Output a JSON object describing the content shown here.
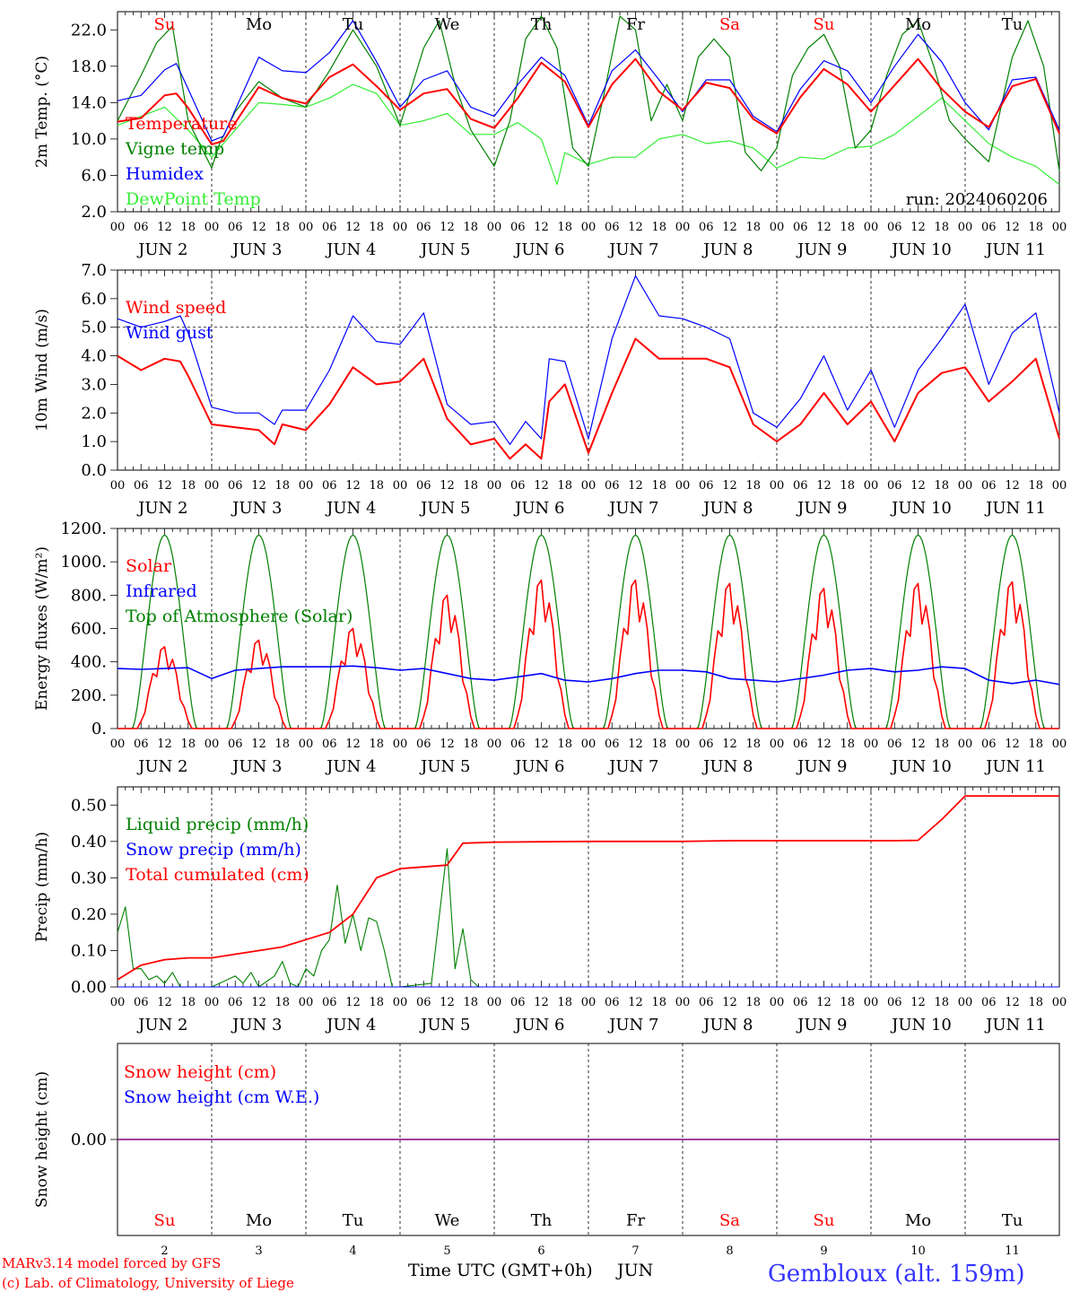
{
  "days": [
    {
      "abbr": "Su",
      "date": "2",
      "weekend": true
    },
    {
      "abbr": "Mo",
      "date": "3",
      "weekend": false
    },
    {
      "abbr": "Tu",
      "date": "4",
      "weekend": false
    },
    {
      "abbr": "We",
      "date": "5",
      "weekend": false
    },
    {
      "abbr": "Th",
      "date": "6",
      "weekend": false
    },
    {
      "abbr": "Fr",
      "date": "7",
      "weekend": false
    },
    {
      "abbr": "Sa",
      "date": "8",
      "weekend": true
    },
    {
      "abbr": "Su",
      "date": "9",
      "weekend": true
    },
    {
      "abbr": "Mo",
      "date": "10",
      "weekend": false
    },
    {
      "abbr": "Tu",
      "date": "11",
      "weekend": false
    }
  ],
  "month": "JUN",
  "hour_labels": [
    "00",
    "06",
    "12",
    "18"
  ],
  "colors": {
    "red": "#ff0000",
    "green": "#008000",
    "blue": "#0000ff",
    "lightgreen": "#33ee33",
    "weekday": "#000000",
    "weekend": "#ff0000",
    "snowline": "#800080"
  },
  "footer": {
    "model_line": "MARv3.14 model forced by GFS",
    "copyright_line": "(c) Lab. of Climatology, University of Liege",
    "x_title": "Time UTC (GMT+0h)",
    "month_label": "JUN",
    "site": "Gembloux (alt. 159m)"
  },
  "chart_data": [
    {
      "type": "line",
      "ylabel": "2m Temp. (°C)",
      "ylim": [
        2.0,
        24.0
      ],
      "yticks": [
        2.0,
        6.0,
        10.0,
        14.0,
        18.0,
        22.0
      ],
      "ytick_labels": [
        "2.0",
        "6.0",
        "10.0",
        "14.0",
        "18.0",
        "22.0"
      ],
      "annotation": "run: 2024060206",
      "x_unit": "hours since JUN 2 00 UTC",
      "series": [
        {
          "name": "Temperature",
          "color": "red",
          "x": [
            0,
            6,
            12,
            15,
            18,
            24,
            27,
            36,
            42,
            48,
            54,
            60,
            66,
            72,
            78,
            84,
            90,
            96,
            102,
            108,
            114,
            120,
            126,
            132,
            138,
            144,
            150,
            156,
            162,
            168,
            174,
            180,
            186,
            192,
            198,
            204,
            210,
            216,
            222,
            228,
            234,
            240
          ],
          "y": [
            11.9,
            12.3,
            14.8,
            15.0,
            13.4,
            9.4,
            9.8,
            15.7,
            14.5,
            13.9,
            16.8,
            18.2,
            15.8,
            13.2,
            15.0,
            15.5,
            12.2,
            11.2,
            14.5,
            18.4,
            16.3,
            11.3,
            16.0,
            18.8,
            15.2,
            13.2,
            16.2,
            15.6,
            12.2,
            10.6,
            14.6,
            17.7,
            16.0,
            13.0,
            15.9,
            18.8,
            15.5,
            13.0,
            11.3,
            15.8,
            16.6,
            10.6
          ]
        },
        {
          "name": "Vigne temp",
          "color": "green",
          "x": [
            0,
            6,
            10,
            14,
            18,
            24,
            26,
            30,
            36,
            42,
            48,
            54,
            60,
            66,
            72,
            78,
            82,
            86,
            90,
            96,
            100,
            104,
            108,
            112,
            116,
            120,
            124,
            128,
            132,
            136,
            140,
            144,
            148,
            152,
            156,
            160,
            164,
            168,
            172,
            176,
            180,
            184,
            188,
            192,
            196,
            200,
            204,
            208,
            212,
            216,
            222,
            228,
            232,
            236,
            240
          ],
          "y": [
            12.0,
            17.0,
            20.6,
            22.4,
            12.0,
            6.8,
            9.5,
            13.0,
            16.3,
            14.5,
            13.5,
            17.5,
            22.0,
            18.0,
            11.5,
            20.0,
            23.0,
            16.0,
            11.0,
            7.0,
            12.0,
            21.0,
            23.5,
            20.0,
            9.0,
            7.0,
            15.0,
            23.5,
            22.0,
            12.0,
            16.0,
            12.0,
            19.0,
            21.0,
            19.0,
            8.5,
            6.5,
            9.0,
            17.0,
            20.0,
            21.5,
            18.0,
            9.0,
            11.0,
            17.0,
            21.5,
            23.0,
            18.0,
            12.0,
            10.0,
            7.5,
            19.0,
            23.0,
            18.0,
            6.5
          ]
        },
        {
          "name": "Humidex",
          "color": "blue",
          "x": [
            0,
            6,
            12,
            15,
            18,
            24,
            27,
            36,
            42,
            48,
            54,
            60,
            66,
            72,
            78,
            84,
            90,
            96,
            102,
            108,
            114,
            120,
            126,
            132,
            138,
            144,
            150,
            156,
            162,
            168,
            174,
            180,
            186,
            192,
            198,
            204,
            210,
            216,
            222,
            228,
            234,
            240
          ],
          "y": [
            14.2,
            14.8,
            17.6,
            18.3,
            15.5,
            9.8,
            10.3,
            19.0,
            17.5,
            17.3,
            19.5,
            23.0,
            18.5,
            13.5,
            16.5,
            17.5,
            13.5,
            12.5,
            16.0,
            19.0,
            17.0,
            11.5,
            17.5,
            19.8,
            16.5,
            13.0,
            16.5,
            16.5,
            12.5,
            10.8,
            15.5,
            18.6,
            17.5,
            14.0,
            18.0,
            21.5,
            18.5,
            14.0,
            11.0,
            16.5,
            16.8,
            11.0
          ]
        },
        {
          "name": "DewPoint Temp",
          "color": "lightgreen",
          "x": [
            0,
            6,
            12,
            18,
            24,
            30,
            36,
            42,
            48,
            54,
            60,
            66,
            72,
            78,
            84,
            90,
            96,
            102,
            108,
            112,
            114,
            120,
            126,
            132,
            138,
            144,
            150,
            156,
            162,
            168,
            174,
            180,
            186,
            192,
            198,
            204,
            210,
            216,
            222,
            228,
            234,
            240
          ],
          "y": [
            11.5,
            12.5,
            13.5,
            11.0,
            8.0,
            11.0,
            14.0,
            13.8,
            13.5,
            14.5,
            16.0,
            15.0,
            11.5,
            12.0,
            12.8,
            10.5,
            10.5,
            11.8,
            10.0,
            5.0,
            8.5,
            7.2,
            8.0,
            8.0,
            10.0,
            10.5,
            9.5,
            9.8,
            9.0,
            6.8,
            8.0,
            7.8,
            9.0,
            9.2,
            10.5,
            12.5,
            14.5,
            12.0,
            9.5,
            8.0,
            7.0,
            5.0
          ]
        }
      ]
    },
    {
      "type": "line",
      "ylabel": "10m Wind (m/s)",
      "ylim": [
        0.0,
        7.0
      ],
      "yticks": [
        0,
        1,
        2,
        3,
        4,
        5,
        6,
        7
      ],
      "ytick_labels": [
        "0.0",
        "1.0",
        "2.0",
        "3.0",
        "4.0",
        "5.0",
        "6.0",
        "7.0"
      ],
      "ref_line": 5.0,
      "series": [
        {
          "name": "Wind speed",
          "color": "red",
          "x": [
            0,
            6,
            12,
            16,
            18,
            24,
            30,
            36,
            40,
            42,
            48,
            54,
            60,
            66,
            72,
            78,
            84,
            90,
            96,
            100,
            104,
            108,
            110,
            114,
            120,
            126,
            132,
            138,
            144,
            150,
            156,
            162,
            168,
            174,
            180,
            186,
            192,
            198,
            204,
            210,
            216,
            222,
            228,
            234,
            240
          ],
          "y": [
            4.0,
            3.5,
            3.9,
            3.8,
            3.3,
            1.6,
            1.5,
            1.4,
            0.9,
            1.6,
            1.4,
            2.3,
            3.6,
            3.0,
            3.1,
            3.9,
            1.8,
            0.9,
            1.1,
            0.4,
            0.9,
            0.4,
            2.4,
            3.0,
            0.6,
            2.7,
            4.6,
            3.9,
            3.9,
            3.9,
            3.6,
            1.6,
            1.0,
            1.6,
            2.7,
            1.6,
            2.4,
            1.0,
            2.7,
            3.4,
            3.6,
            2.4,
            3.1,
            3.9,
            1.1
          ]
        },
        {
          "name": "Wind gust",
          "color": "blue",
          "x": [
            0,
            6,
            12,
            16,
            18,
            24,
            30,
            36,
            40,
            42,
            48,
            54,
            60,
            66,
            72,
            78,
            84,
            90,
            96,
            100,
            104,
            108,
            110,
            114,
            120,
            126,
            132,
            138,
            144,
            150,
            156,
            162,
            168,
            174,
            180,
            186,
            192,
            198,
            204,
            210,
            216,
            222,
            228,
            234,
            240
          ],
          "y": [
            5.3,
            5.0,
            5.2,
            5.4,
            4.8,
            2.2,
            2.0,
            2.0,
            1.6,
            2.1,
            2.1,
            3.5,
            5.4,
            4.5,
            4.4,
            5.5,
            2.3,
            1.6,
            1.7,
            0.9,
            1.7,
            1.1,
            3.9,
            3.8,
            1.1,
            4.6,
            6.8,
            5.4,
            5.3,
            5.0,
            4.6,
            2.0,
            1.5,
            2.5,
            4.0,
            2.1,
            3.5,
            1.5,
            3.5,
            4.6,
            5.8,
            3.0,
            4.8,
            5.5,
            2.0
          ]
        }
      ]
    },
    {
      "type": "line",
      "ylabel": "Energy fluxes (W/m²)",
      "ylim": [
        0,
        1200
      ],
      "yticks": [
        0,
        200,
        400,
        600,
        800,
        1000,
        1200
      ],
      "ytick_labels": [
        "0.",
        "200.",
        "400.",
        "600.",
        "800.",
        "1000.",
        "1200."
      ],
      "series": [
        {
          "name": "Solar",
          "color": "red",
          "daily_peaks": [
            490,
            530,
            600,
            800,
            890,
            890,
            870,
            840,
            870,
            880
          ]
        },
        {
          "name": "Infrared",
          "color": "blue",
          "x": [
            0,
            6,
            12,
            18,
            24,
            30,
            36,
            42,
            48,
            54,
            60,
            66,
            72,
            78,
            84,
            90,
            96,
            102,
            108,
            114,
            120,
            126,
            132,
            138,
            144,
            150,
            156,
            162,
            168,
            174,
            180,
            186,
            192,
            198,
            204,
            210,
            216,
            222,
            228,
            234,
            240
          ],
          "y": [
            360,
            355,
            360,
            365,
            300,
            350,
            360,
            370,
            370,
            370,
            375,
            365,
            350,
            360,
            330,
            300,
            290,
            310,
            330,
            290,
            280,
            300,
            330,
            350,
            350,
            340,
            300,
            290,
            280,
            300,
            320,
            350,
            360,
            340,
            350,
            370,
            360,
            290,
            270,
            290,
            265
          ]
        },
        {
          "name": "Top of Atmosphere (Solar)",
          "color": "green",
          "daily_peak": 1160
        }
      ]
    },
    {
      "type": "line",
      "ylabel": "Precip (mm/h)",
      "ylim": [
        0.0,
        0.55
      ],
      "yticks": [
        0.0,
        0.1,
        0.2,
        0.3,
        0.4,
        0.5
      ],
      "ytick_labels": [
        "0.00",
        "0.10",
        "0.20",
        "0.30",
        "0.40",
        "0.50"
      ],
      "series": [
        {
          "name": "Liquid precip (mm/h)",
          "color": "green",
          "x": [
            0,
            2,
            4,
            6,
            8,
            10,
            12,
            14,
            16,
            18,
            24,
            30,
            32,
            34,
            36,
            40,
            42,
            44,
            46,
            48,
            50,
            52,
            54,
            56,
            58,
            60,
            62,
            64,
            66,
            68,
            70,
            72,
            80,
            84,
            86,
            88,
            90,
            92,
            94,
            96,
            100,
            120,
            140,
            240
          ],
          "y": [
            0.15,
            0.22,
            0.05,
            0.05,
            0.02,
            0.03,
            0.01,
            0.04,
            0.0,
            0.0,
            0.0,
            0.03,
            0.01,
            0.04,
            0.0,
            0.03,
            0.07,
            0.01,
            0.0,
            0.05,
            0.03,
            0.1,
            0.13,
            0.28,
            0.12,
            0.2,
            0.1,
            0.19,
            0.18,
            0.1,
            0.0,
            0.0,
            0.01,
            0.38,
            0.05,
            0.16,
            0.02,
            0.0,
            0.0,
            0.0,
            0.0,
            0.0,
            0.0,
            0.0
          ]
        },
        {
          "name": "Snow precip (mm/h)",
          "color": "blue",
          "x": [
            0,
            240
          ],
          "y": [
            0,
            0
          ]
        },
        {
          "name": "Total cumulated (cm)",
          "color": "red",
          "x": [
            0,
            6,
            12,
            18,
            24,
            30,
            36,
            42,
            48,
            54,
            60,
            66,
            72,
            78,
            84,
            88,
            96,
            108,
            120,
            132,
            144,
            156,
            168,
            180,
            192,
            198,
            204,
            210,
            216,
            222,
            228,
            234,
            240
          ],
          "y": [
            0.02,
            0.06,
            0.075,
            0.08,
            0.08,
            0.09,
            0.1,
            0.11,
            0.13,
            0.15,
            0.2,
            0.3,
            0.325,
            0.33,
            0.335,
            0.395,
            0.398,
            0.399,
            0.4,
            0.4,
            0.4,
            0.402,
            0.402,
            0.402,
            0.402,
            0.402,
            0.403,
            0.46,
            0.525,
            0.525,
            0.525,
            0.525,
            0.525
          ]
        }
      ]
    },
    {
      "type": "line",
      "ylabel": "Snow height (cm)",
      "ytick_labels": [
        "0.00"
      ],
      "series": [
        {
          "name": "Snow height (cm)",
          "color": "red",
          "x": [
            0,
            240
          ],
          "y": [
            0.0,
            0.0
          ]
        },
        {
          "name": "Snow height (cm W.E.)",
          "color": "blue",
          "x": [
            0,
            240
          ],
          "y": [
            0.0,
            0.0
          ]
        }
      ]
    }
  ]
}
